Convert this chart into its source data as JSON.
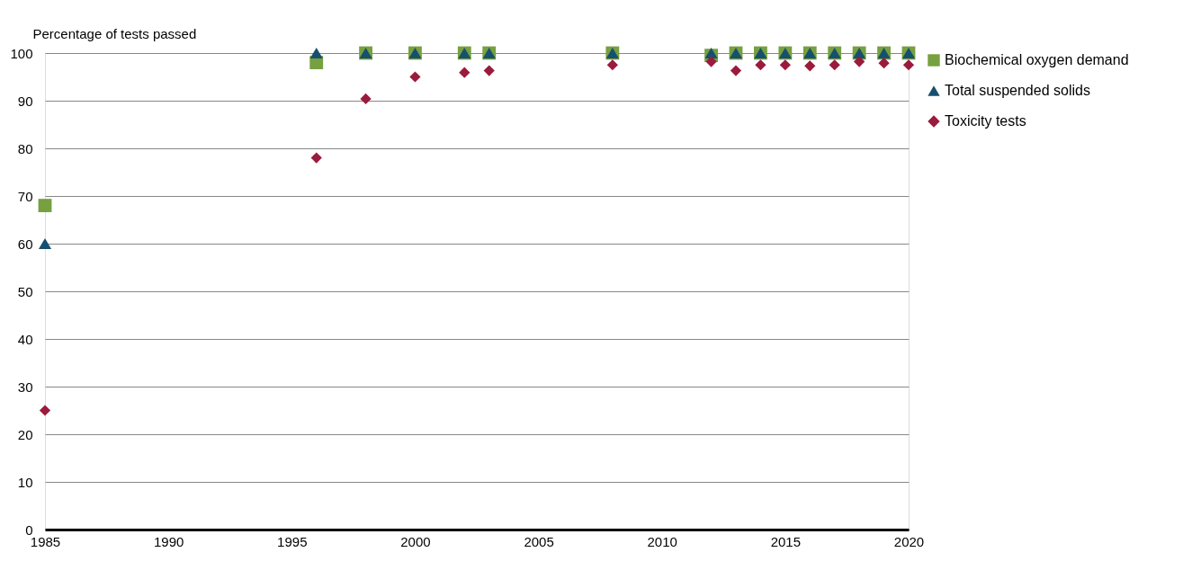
{
  "chart_data": {
    "type": "scatter",
    "ylabel": "Percentage of tests passed",
    "x": [
      1985,
      1996,
      1998,
      2000,
      2002,
      2003,
      2008,
      2012,
      2013,
      2014,
      2015,
      2016,
      2017,
      2018,
      2019,
      2020
    ],
    "series": [
      {
        "name": "Biochemical oxygen demand",
        "color": "#77a040",
        "marker": "square",
        "values": [
          68,
          98,
          100,
          100,
          100,
          100,
          100,
          99.5,
          100,
          100,
          100,
          100,
          100,
          100,
          100,
          100
        ]
      },
      {
        "name": "Total suspended solids",
        "color": "#17506e",
        "marker": "triangle",
        "values": [
          60,
          100,
          100,
          100,
          100,
          100,
          100,
          100,
          100,
          100,
          100,
          100,
          100,
          100,
          100,
          100
        ]
      },
      {
        "name": "Toxicity tests",
        "color": "#9b1b3c",
        "marker": "diamond",
        "values": [
          25,
          78,
          90.4,
          95,
          95.9,
          96.3,
          97.5,
          98.2,
          96.3,
          97.5,
          97.5,
          97.3,
          97.5,
          98.2,
          97.9,
          97.5
        ]
      }
    ],
    "xlim": [
      1985,
      2020
    ],
    "xticks": [
      1985,
      1990,
      1995,
      2000,
      2005,
      2010,
      2015,
      2020
    ],
    "ylim": [
      0,
      100
    ],
    "yticks": [
      0,
      10,
      20,
      30,
      40,
      50,
      60,
      70,
      80,
      90,
      100
    ],
    "grid": "y",
    "legend": "right"
  }
}
